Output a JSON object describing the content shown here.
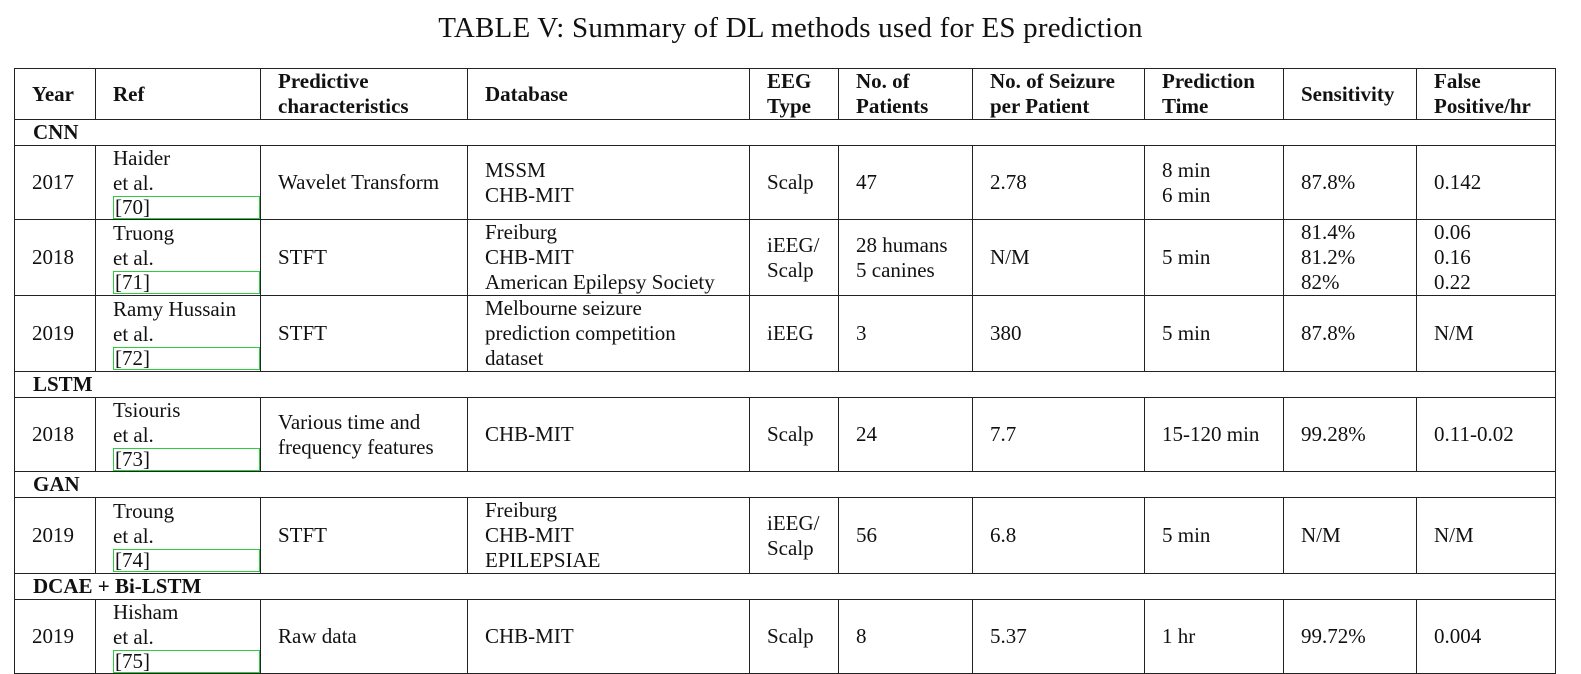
{
  "caption": "TABLE V: Summary of DL methods used for ES prediction",
  "headers": {
    "year": "Year",
    "ref": "Ref",
    "predictive": [
      "Predictive",
      "characteristics"
    ],
    "database": "Database",
    "eeg_type": [
      "EEG",
      "Type"
    ],
    "patients": [
      "No. of",
      "Patients"
    ],
    "seizures": [
      "No. of Seizure",
      "per Patient"
    ],
    "prediction_time": [
      "Prediction",
      "Time"
    ],
    "sensitivity": "Sensitivity",
    "false_positive": [
      "False",
      "Positive/hr"
    ]
  },
  "groups": [
    {
      "name": "CNN",
      "rows": [
        {
          "year": "2017",
          "author": "Haider",
          "etal": "et al.",
          "ref": "[70]",
          "predictive": [
            "Wavelet Transform"
          ],
          "database": [
            "MSSM",
            "CHB-MIT"
          ],
          "eeg_type": [
            "Scalp"
          ],
          "patients": [
            "47"
          ],
          "seizures": "2.78",
          "prediction_time": [
            "8 min",
            "6 min"
          ],
          "sensitivity": [
            "87.8%"
          ],
          "false_positive": [
            "0.142"
          ]
        },
        {
          "year": "2018",
          "author": "Truong",
          "etal": "et al.",
          "ref": "[71]",
          "predictive": [
            "STFT"
          ],
          "database": [
            "Freiburg",
            "CHB-MIT",
            "American Epilepsy Society"
          ],
          "eeg_type": [
            "iEEG/",
            "Scalp"
          ],
          "patients": [
            "28 humans",
            "5 canines"
          ],
          "seizures": "N/M",
          "prediction_time": [
            "5 min"
          ],
          "sensitivity": [
            "81.4%",
            "81.2%",
            "82%"
          ],
          "false_positive": [
            "0.06",
            "0.16",
            "0.22"
          ]
        },
        {
          "year": "2019",
          "author": "Ramy Hussain",
          "etal": "et al.",
          "ref": "[72]",
          "predictive": [
            "STFT"
          ],
          "database": [
            "Melbourne seizure",
            "prediction competition",
            "dataset"
          ],
          "eeg_type": [
            "iEEG"
          ],
          "patients": [
            "3"
          ],
          "seizures": "380",
          "prediction_time": [
            "5 min"
          ],
          "sensitivity": [
            "87.8%"
          ],
          "false_positive": [
            "N/M"
          ]
        }
      ]
    },
    {
      "name": "LSTM",
      "rows": [
        {
          "year": "2018",
          "author": "Tsiouris",
          "etal": "et al.",
          "ref": "[73]",
          "predictive": [
            "Various time and",
            "frequency features"
          ],
          "database": [
            "CHB-MIT"
          ],
          "eeg_type": [
            "Scalp"
          ],
          "patients": [
            "24"
          ],
          "seizures": "7.7",
          "prediction_time": [
            "15-120 min"
          ],
          "sensitivity": [
            "99.28%"
          ],
          "false_positive": [
            "0.11-0.02"
          ]
        }
      ]
    },
    {
      "name": "GAN",
      "rows": [
        {
          "year": "2019",
          "author": "Troung",
          "etal": "et al.",
          "ref": "[74]",
          "predictive": [
            "STFT"
          ],
          "database": [
            "Freiburg",
            "CHB-MIT",
            "EPILEPSIAE"
          ],
          "eeg_type": [
            "iEEG/",
            "Scalp"
          ],
          "patients": [
            "56"
          ],
          "seizures": "6.8",
          "prediction_time": [
            "5 min"
          ],
          "sensitivity": [
            "N/M"
          ],
          "false_positive": [
            "N/M"
          ]
        }
      ]
    },
    {
      "name": "DCAE + Bi-LSTM",
      "rows": [
        {
          "year": "2019",
          "author": "Hisham",
          "etal": "et al.",
          "ref": "[75]",
          "predictive": [
            "Raw data"
          ],
          "database": [
            "CHB-MIT"
          ],
          "eeg_type": [
            "Scalp"
          ],
          "patients": [
            "8"
          ],
          "seizures": "5.37",
          "prediction_time": [
            "1 hr"
          ],
          "sensitivity": [
            "99.72%"
          ],
          "false_positive": [
            "0.004"
          ]
        }
      ]
    }
  ]
}
